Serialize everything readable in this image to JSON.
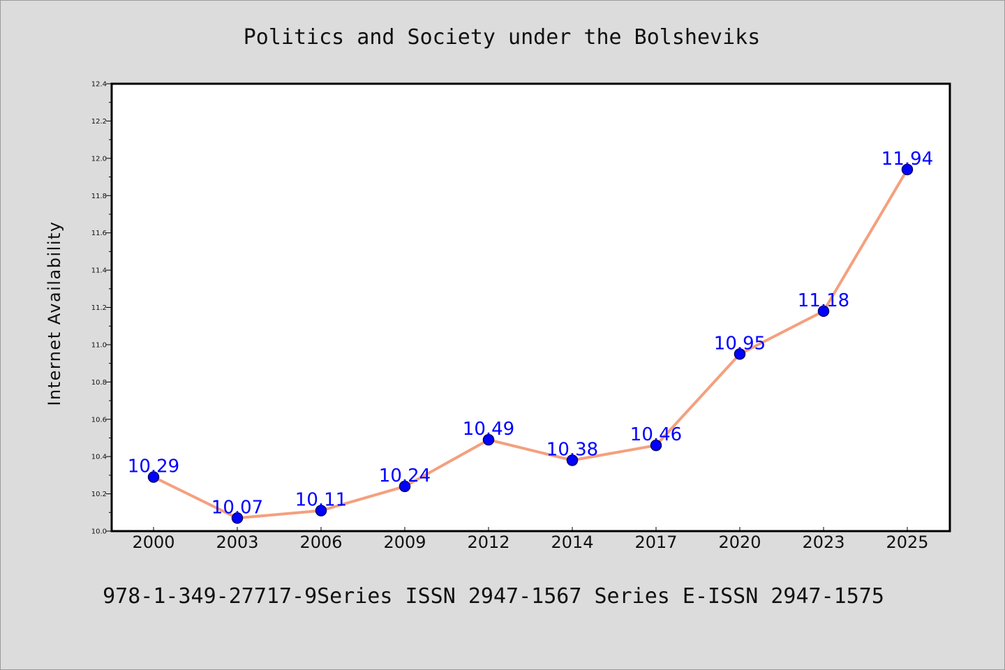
{
  "chart_data": {
    "type": "line",
    "title": "Politics and Society under the Bolsheviks",
    "xlabel": "",
    "ylabel": "Internet Availability",
    "categories": [
      "2000",
      "2003",
      "2006",
      "2009",
      "2012",
      "2014",
      "2017",
      "2020",
      "2023",
      "2025"
    ],
    "series": [
      {
        "values": [
          10.29,
          10.07,
          10.11,
          10.24,
          10.49,
          10.38,
          10.46,
          10.95,
          11.18,
          11.94
        ]
      }
    ],
    "data_labels": [
      "10.29",
      "10.07",
      "10.11",
      "10.24",
      "10.49",
      "10.38",
      "10.46",
      "10.95",
      "11.18",
      "11.94"
    ],
    "ylim": [
      10.0,
      12.4
    ],
    "yticks": [
      "10.0",
      "10.2",
      "10.4",
      "10.6",
      "10.8",
      "11.0",
      "11.2",
      "11.4",
      "11.6",
      "11.8",
      "12.0",
      "12.2",
      "12.4"
    ],
    "grid": false,
    "legend": "none",
    "footer": "978-1-349-27717-9Series ISSN 2947-1567 Series E-ISSN 2947-1575",
    "colors": {
      "line": "#f4a07e",
      "marker_fill": "#0000ff",
      "marker_edge": "#000066",
      "data_label": "#0000ff",
      "plot_background": "#ffffff",
      "figure_background": "#dcdcdc"
    }
  }
}
